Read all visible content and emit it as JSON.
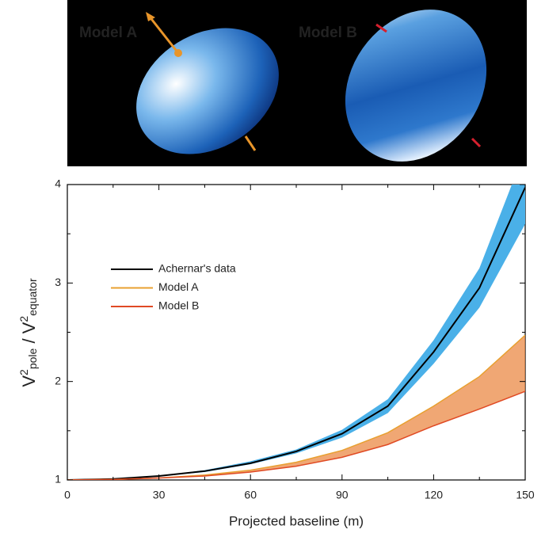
{
  "panel": {
    "label_a": "Model A",
    "label_a_color": "#e8952a",
    "label_b": "Model B",
    "label_b_color": "#d6202e"
  },
  "chart_data": {
    "type": "line",
    "xlabel": "Projected baseline (m)",
    "ylabel": [
      {
        "text": "V"
      },
      {
        "text": "2",
        "style": "sup"
      },
      {
        "text": "pole",
        "style": "sub"
      },
      {
        "text": " / V"
      },
      {
        "text": "2",
        "style": "sup"
      },
      {
        "text": "equator",
        "style": "sub"
      }
    ],
    "x": [
      0,
      15,
      30,
      45,
      60,
      75,
      90,
      105,
      120,
      135,
      150
    ],
    "series": [
      {
        "name": "Achernar's data",
        "color": "#000000",
        "values": [
          1,
          1.01,
          1.04,
          1.09,
          1.17,
          1.29,
          1.47,
          1.75,
          2.3,
          2.95,
          3.97
        ],
        "band_lower": [
          1,
          1.01,
          1.04,
          1.08,
          1.16,
          1.27,
          1.43,
          1.68,
          2.18,
          2.75,
          3.6
        ],
        "band_upper": [
          1,
          1.01,
          1.04,
          1.1,
          1.19,
          1.31,
          1.51,
          1.82,
          2.42,
          3.15,
          4.35
        ],
        "band_color": "#4ab0e8"
      },
      {
        "name": "Model A",
        "color": "#e8a030",
        "values": [
          1,
          1.005,
          1.02,
          1.05,
          1.1,
          1.18,
          1.3,
          1.48,
          1.75,
          2.05,
          2.47
        ]
      },
      {
        "name": "Model B",
        "color": "#e04a24",
        "values": [
          1,
          1.005,
          1.02,
          1.04,
          1.08,
          1.14,
          1.23,
          1.36,
          1.55,
          1.72,
          1.9
        ]
      }
    ],
    "fill_between_color": "#eb8a45",
    "xlim": [
      0,
      150
    ],
    "xticks": [
      0,
      30,
      60,
      90,
      120,
      150
    ],
    "ylim": [
      1,
      4
    ],
    "yticks": [
      1,
      2,
      3,
      4
    ]
  }
}
